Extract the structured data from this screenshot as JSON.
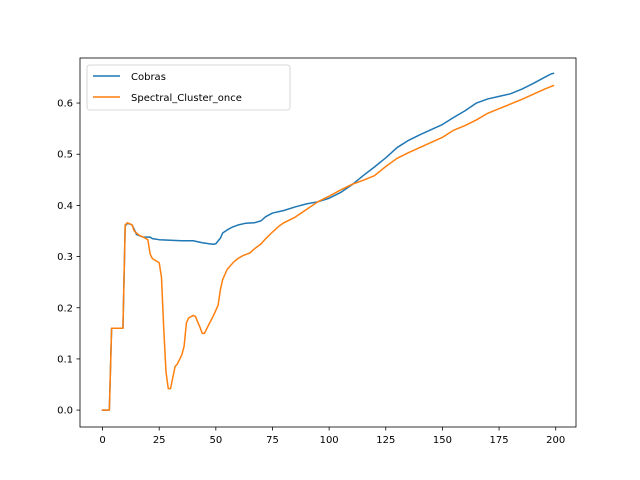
{
  "chart_data": {
    "type": "line",
    "title": "",
    "xlabel": "",
    "ylabel": "",
    "xlim": [
      -9.95,
      208.95
    ],
    "ylim": [
      -0.033,
      0.688
    ],
    "xticks": [
      0,
      25,
      50,
      75,
      100,
      125,
      150,
      175,
      200
    ],
    "yticks": [
      0.0,
      0.1,
      0.2,
      0.3,
      0.4,
      0.5,
      0.6
    ],
    "grid": false,
    "legend_position": "top-left",
    "series": [
      {
        "name": "Cobras",
        "color": "#1f77b4",
        "points": [
          [
            0,
            0.0
          ],
          [
            3,
            0.0
          ],
          [
            4,
            0.16
          ],
          [
            5,
            0.16
          ],
          [
            9,
            0.16
          ],
          [
            10,
            0.36
          ],
          [
            11,
            0.365
          ],
          [
            13,
            0.362
          ],
          [
            14,
            0.353
          ],
          [
            15,
            0.343
          ],
          [
            18,
            0.338
          ],
          [
            21,
            0.338
          ],
          [
            22,
            0.335
          ],
          [
            25,
            0.333
          ],
          [
            30,
            0.332
          ],
          [
            35,
            0.331
          ],
          [
            40,
            0.331
          ],
          [
            42,
            0.329
          ],
          [
            44,
            0.327
          ],
          [
            47,
            0.325
          ],
          [
            49,
            0.324
          ],
          [
            50,
            0.325
          ],
          [
            52,
            0.336
          ],
          [
            53,
            0.346
          ],
          [
            55,
            0.352
          ],
          [
            57,
            0.357
          ],
          [
            60,
            0.362
          ],
          [
            63,
            0.365
          ],
          [
            67,
            0.366
          ],
          [
            70,
            0.37
          ],
          [
            72,
            0.378
          ],
          [
            75,
            0.385
          ],
          [
            80,
            0.39
          ],
          [
            85,
            0.397
          ],
          [
            90,
            0.403
          ],
          [
            95,
            0.407
          ],
          [
            100,
            0.414
          ],
          [
            105,
            0.425
          ],
          [
            110,
            0.44
          ],
          [
            115,
            0.458
          ],
          [
            120,
            0.475
          ],
          [
            125,
            0.493
          ],
          [
            130,
            0.513
          ],
          [
            135,
            0.527
          ],
          [
            140,
            0.538
          ],
          [
            145,
            0.548
          ],
          [
            150,
            0.558
          ],
          [
            155,
            0.572
          ],
          [
            160,
            0.585
          ],
          [
            165,
            0.6
          ],
          [
            170,
            0.608
          ],
          [
            175,
            0.613
          ],
          [
            180,
            0.618
          ],
          [
            185,
            0.627
          ],
          [
            190,
            0.638
          ],
          [
            195,
            0.65
          ],
          [
            198,
            0.657
          ],
          [
            199,
            0.658
          ]
        ]
      },
      {
        "name": "Spectral_Cluster_once",
        "color": "#ff7f0e",
        "points": [
          [
            0,
            0.0
          ],
          [
            3,
            0.0
          ],
          [
            4,
            0.16
          ],
          [
            5,
            0.16
          ],
          [
            9,
            0.16
          ],
          [
            10,
            0.362
          ],
          [
            11,
            0.366
          ],
          [
            13,
            0.362
          ],
          [
            14,
            0.35
          ],
          [
            16,
            0.342
          ],
          [
            18,
            0.338
          ],
          [
            20,
            0.333
          ],
          [
            21,
            0.305
          ],
          [
            22,
            0.296
          ],
          [
            25,
            0.288
          ],
          [
            26,
            0.26
          ],
          [
            27,
            0.16
          ],
          [
            28,
            0.075
          ],
          [
            29,
            0.042
          ],
          [
            30,
            0.042
          ],
          [
            32,
            0.085
          ],
          [
            33,
            0.09
          ],
          [
            35,
            0.108
          ],
          [
            36,
            0.125
          ],
          [
            37,
            0.17
          ],
          [
            38,
            0.18
          ],
          [
            40,
            0.185
          ],
          [
            41,
            0.183
          ],
          [
            42,
            0.172
          ],
          [
            43,
            0.162
          ],
          [
            44,
            0.15
          ],
          [
            45,
            0.15
          ],
          [
            47,
            0.168
          ],
          [
            49,
            0.185
          ],
          [
            51,
            0.205
          ],
          [
            52,
            0.235
          ],
          [
            53,
            0.255
          ],
          [
            55,
            0.275
          ],
          [
            58,
            0.29
          ],
          [
            60,
            0.297
          ],
          [
            62,
            0.302
          ],
          [
            65,
            0.307
          ],
          [
            67,
            0.315
          ],
          [
            70,
            0.325
          ],
          [
            72,
            0.335
          ],
          [
            75,
            0.348
          ],
          [
            78,
            0.36
          ],
          [
            80,
            0.366
          ],
          [
            85,
            0.377
          ],
          [
            90,
            0.392
          ],
          [
            95,
            0.407
          ],
          [
            100,
            0.418
          ],
          [
            105,
            0.43
          ],
          [
            110,
            0.441
          ],
          [
            115,
            0.449
          ],
          [
            120,
            0.458
          ],
          [
            125,
            0.476
          ],
          [
            130,
            0.492
          ],
          [
            135,
            0.503
          ],
          [
            140,
            0.513
          ],
          [
            145,
            0.523
          ],
          [
            150,
            0.533
          ],
          [
            155,
            0.547
          ],
          [
            160,
            0.556
          ],
          [
            165,
            0.567
          ],
          [
            170,
            0.58
          ],
          [
            175,
            0.589
          ],
          [
            180,
            0.598
          ],
          [
            185,
            0.607
          ],
          [
            190,
            0.617
          ],
          [
            195,
            0.627
          ],
          [
            199,
            0.634
          ]
        ]
      }
    ]
  }
}
